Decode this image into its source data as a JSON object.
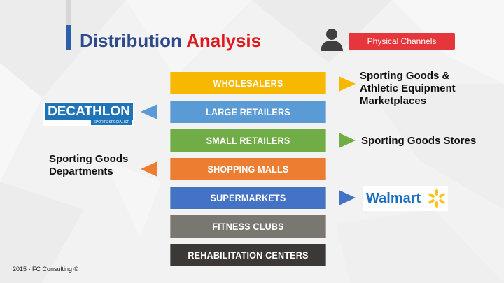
{
  "title": {
    "part1": "Distribution",
    "part2": "Analysis"
  },
  "badge": "Physical Channels",
  "channels": [
    {
      "label": "WHOLESALERS",
      "color": "#f6b800"
    },
    {
      "label": "LARGE RETAILERS",
      "color": "#5b9bd5"
    },
    {
      "label": "SMALL RETAILERS",
      "color": "#70ad47"
    },
    {
      "label": "SHOPPING MALLS",
      "color": "#ed7d31"
    },
    {
      "label": "SUPERMARKETS",
      "color": "#4472c4"
    },
    {
      "label": "FITNESS  CLUBS",
      "color": "#7a7670"
    },
    {
      "label": "REHABILITATION  CENTERS",
      "color": "#3b3836"
    }
  ],
  "notes": {
    "wholesalers": [
      "Sporting Goods &",
      "Athletic Equipment",
      "Marketplaces"
    ],
    "small_retailers": "Sporting Goods Stores",
    "shopping_malls": [
      "Sporting Goods",
      "Departments"
    ]
  },
  "logos": {
    "decathlon": {
      "name": "DECATHLON",
      "tagline": "SPORTS SPECIALIST"
    },
    "walmart": {
      "name": "Walmart"
    }
  },
  "footer": "2015 - FC Consulting ©"
}
